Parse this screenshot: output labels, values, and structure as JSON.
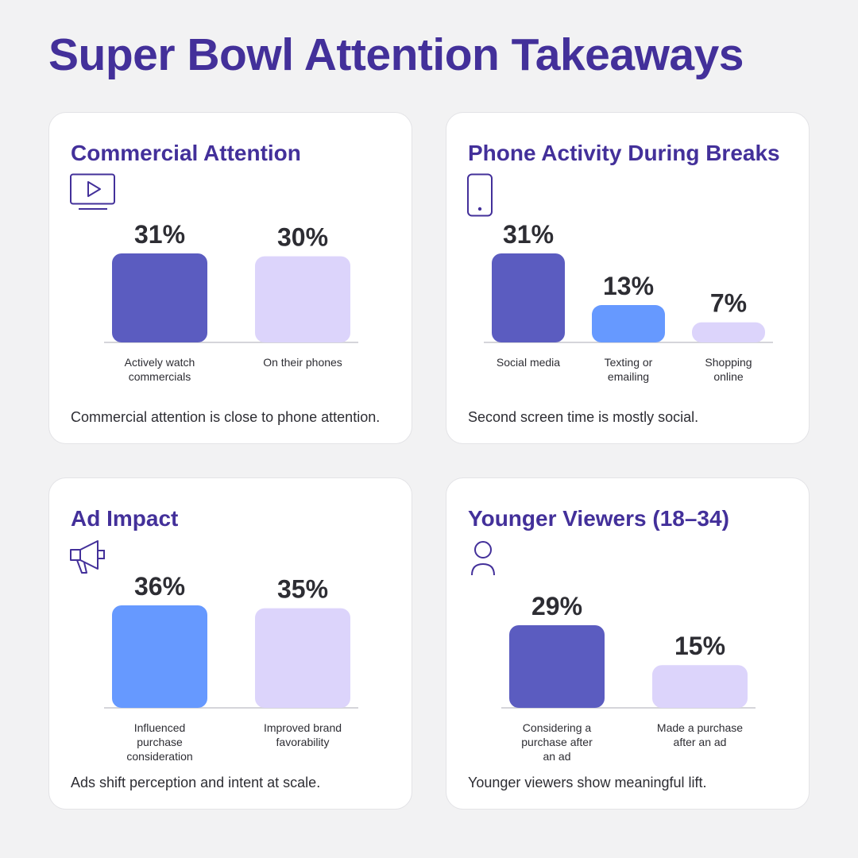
{
  "page": {
    "title": "Super Bowl Attention Takeaways"
  },
  "colors": {
    "title": "#43309a",
    "dark_purple": "#5b5cc0",
    "blue": "#6699ff",
    "lavender": "#dcd4fb",
    "axis": "#d5d5da",
    "value_text": "#2d2d33",
    "label_text": "#2d2d33"
  },
  "cards": [
    {
      "title": "Commercial Attention",
      "icon": "tv-play-icon",
      "caption": "Commercial attention is close to phone attention."
    },
    {
      "title": "Phone Activity During Breaks",
      "icon": "smartphone-icon",
      "caption": "Second screen time is mostly social."
    },
    {
      "title": "Ad Impact",
      "icon": "megaphone-icon",
      "caption": "Ads shift perception and intent at scale."
    },
    {
      "title": "Younger Viewers (18–34)",
      "icon": "user-icon",
      "caption": "Younger viewers show meaningful lift."
    }
  ],
  "chart_data": [
    {
      "type": "bar",
      "title": "Commercial Attention",
      "categories": [
        [
          "Actively watch",
          "commercials"
        ],
        [
          "On their phones"
        ]
      ],
      "values": [
        31,
        30
      ],
      "labels": [
        "31%",
        "30%"
      ],
      "colors": [
        "#5b5cc0",
        "#dcd4fb"
      ],
      "unit": "%",
      "ylim": [
        0,
        31
      ]
    },
    {
      "type": "bar",
      "title": "Phone Activity During Breaks",
      "categories": [
        [
          "Social media"
        ],
        [
          "Texting or",
          "emailing"
        ],
        [
          "Shopping",
          "online"
        ]
      ],
      "values": [
        31,
        13,
        7
      ],
      "labels": [
        "31%",
        "13%",
        "7%"
      ],
      "colors": [
        "#5b5cc0",
        "#6699ff",
        "#dcd4fb"
      ],
      "unit": "%",
      "ylim": [
        0,
        31
      ]
    },
    {
      "type": "bar",
      "title": "Ad Impact",
      "categories": [
        [
          "Influenced",
          "purchase",
          "consideration"
        ],
        [
          "Improved brand",
          "favorability"
        ]
      ],
      "values": [
        36,
        35
      ],
      "labels": [
        "36%",
        "35%"
      ],
      "colors": [
        "#6699ff",
        "#dcd4fb"
      ],
      "unit": "%",
      "ylim": [
        0,
        36
      ]
    },
    {
      "type": "bar",
      "title": "Younger Viewers (18–34)",
      "categories": [
        [
          "Considering a",
          "purchase after",
          "an ad"
        ],
        [
          "Made a purchase",
          "after an ad"
        ]
      ],
      "values": [
        29,
        15
      ],
      "labels": [
        "29%",
        "15%"
      ],
      "colors": [
        "#5b5cc0",
        "#dcd4fb"
      ],
      "unit": "%",
      "ylim": [
        0,
        29
      ]
    }
  ]
}
